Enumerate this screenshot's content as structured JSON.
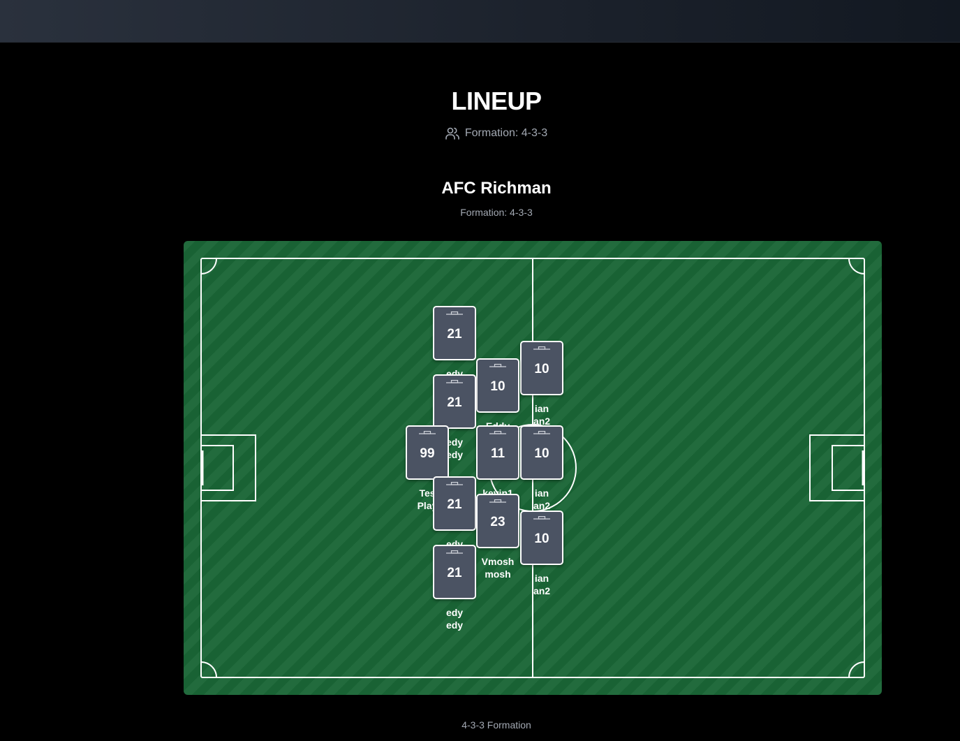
{
  "header": {
    "title": "LINEUP",
    "formation_text": "Formation: 4-3-3",
    "formation_icon": "users-icon"
  },
  "team": {
    "name": "AFC Richman",
    "formation_text": "Formation: 4-3-3"
  },
  "players": [
    {
      "id": "p1",
      "number": "21",
      "first": "edy",
      "last": "edy"
    },
    {
      "id": "p2",
      "number": "10",
      "first": "ian",
      "last": "an2"
    },
    {
      "id": "p3",
      "number": "10",
      "first": "Eddy",
      "last": ""
    },
    {
      "id": "p4",
      "number": "21",
      "first": "edy",
      "last": "edy"
    },
    {
      "id": "p5",
      "number": "99",
      "first": "Tes",
      "last": "Play"
    },
    {
      "id": "p6",
      "number": "11",
      "first": "kevin1",
      "last": ""
    },
    {
      "id": "p7",
      "number": "10",
      "first": "ian",
      "last": "an2"
    },
    {
      "id": "p8",
      "number": "21",
      "first": "edy",
      "last": "edy"
    },
    {
      "id": "p9",
      "number": "23",
      "first": "Vmosh",
      "last": "mosh"
    },
    {
      "id": "p10",
      "number": "10",
      "first": "ian",
      "last": "an2"
    },
    {
      "id": "p11",
      "number": "21",
      "first": "edy",
      "last": "edy"
    }
  ],
  "footer": {
    "label": "4-3-3 Formation"
  },
  "colors": {
    "pitch": "#1a6636",
    "card": "#4b5363",
    "background": "#000000"
  }
}
